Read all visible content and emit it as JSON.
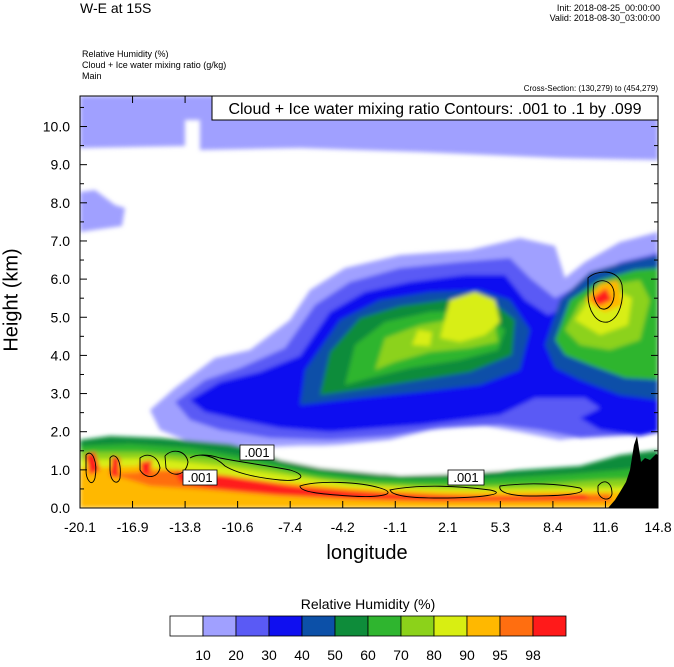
{
  "header": {
    "title": "W-E at 15S",
    "init": "Init: 2018-08-25_00:00:00",
    "valid": "Valid: 2018-08-30_03:00:00",
    "field_lines": [
      "Relative Humidity   (%)",
      "Cloud + Ice water mixing ratio   (g/kg)",
      "Main"
    ],
    "cross_section": "Cross-Section: (130,279) to (454,279)"
  },
  "chart_data": {
    "type": "heatmap",
    "contour_annotation": "Cloud + Ice water mixing ratio Contours: .001 to .1 by .099",
    "contour_labels": [
      ".001",
      ".001",
      ".001"
    ],
    "xlabel": "longitude",
    "ylabel": "Height (km)",
    "xlim": [
      -20.1,
      14.8
    ],
    "ylim": [
      0.0,
      10.8
    ],
    "x_ticks": [
      "-20.1",
      "-16.9",
      "-13.8",
      "-10.6",
      "-7.4",
      "-4.2",
      "-1.1",
      "2.1",
      "5.3",
      "8.4",
      "11.6",
      "14.8"
    ],
    "y_ticks": [
      "0.0",
      "1.0",
      "2.0",
      "3.0",
      "4.0",
      "5.0",
      "6.0",
      "7.0",
      "8.0",
      "9.0",
      "10.0"
    ],
    "y_tick_values": [
      0,
      1,
      2,
      3,
      4,
      5,
      6,
      7,
      8,
      9,
      10
    ],
    "colorbar": {
      "title": "Relative Humidity  (%)",
      "levels": [
        "10",
        "20",
        "30",
        "40",
        "50",
        "60",
        "70",
        "80",
        "90",
        "95",
        "98"
      ],
      "colors": [
        "#ffffff",
        "#a0a0ff",
        "#5a5af5",
        "#0f0ff0",
        "#0c50a8",
        "#0e8c3a",
        "#2fb52f",
        "#8cd21a",
        "#d8ee12",
        "#ffb800",
        "#ff6e10",
        "#ff1a1a"
      ]
    }
  }
}
